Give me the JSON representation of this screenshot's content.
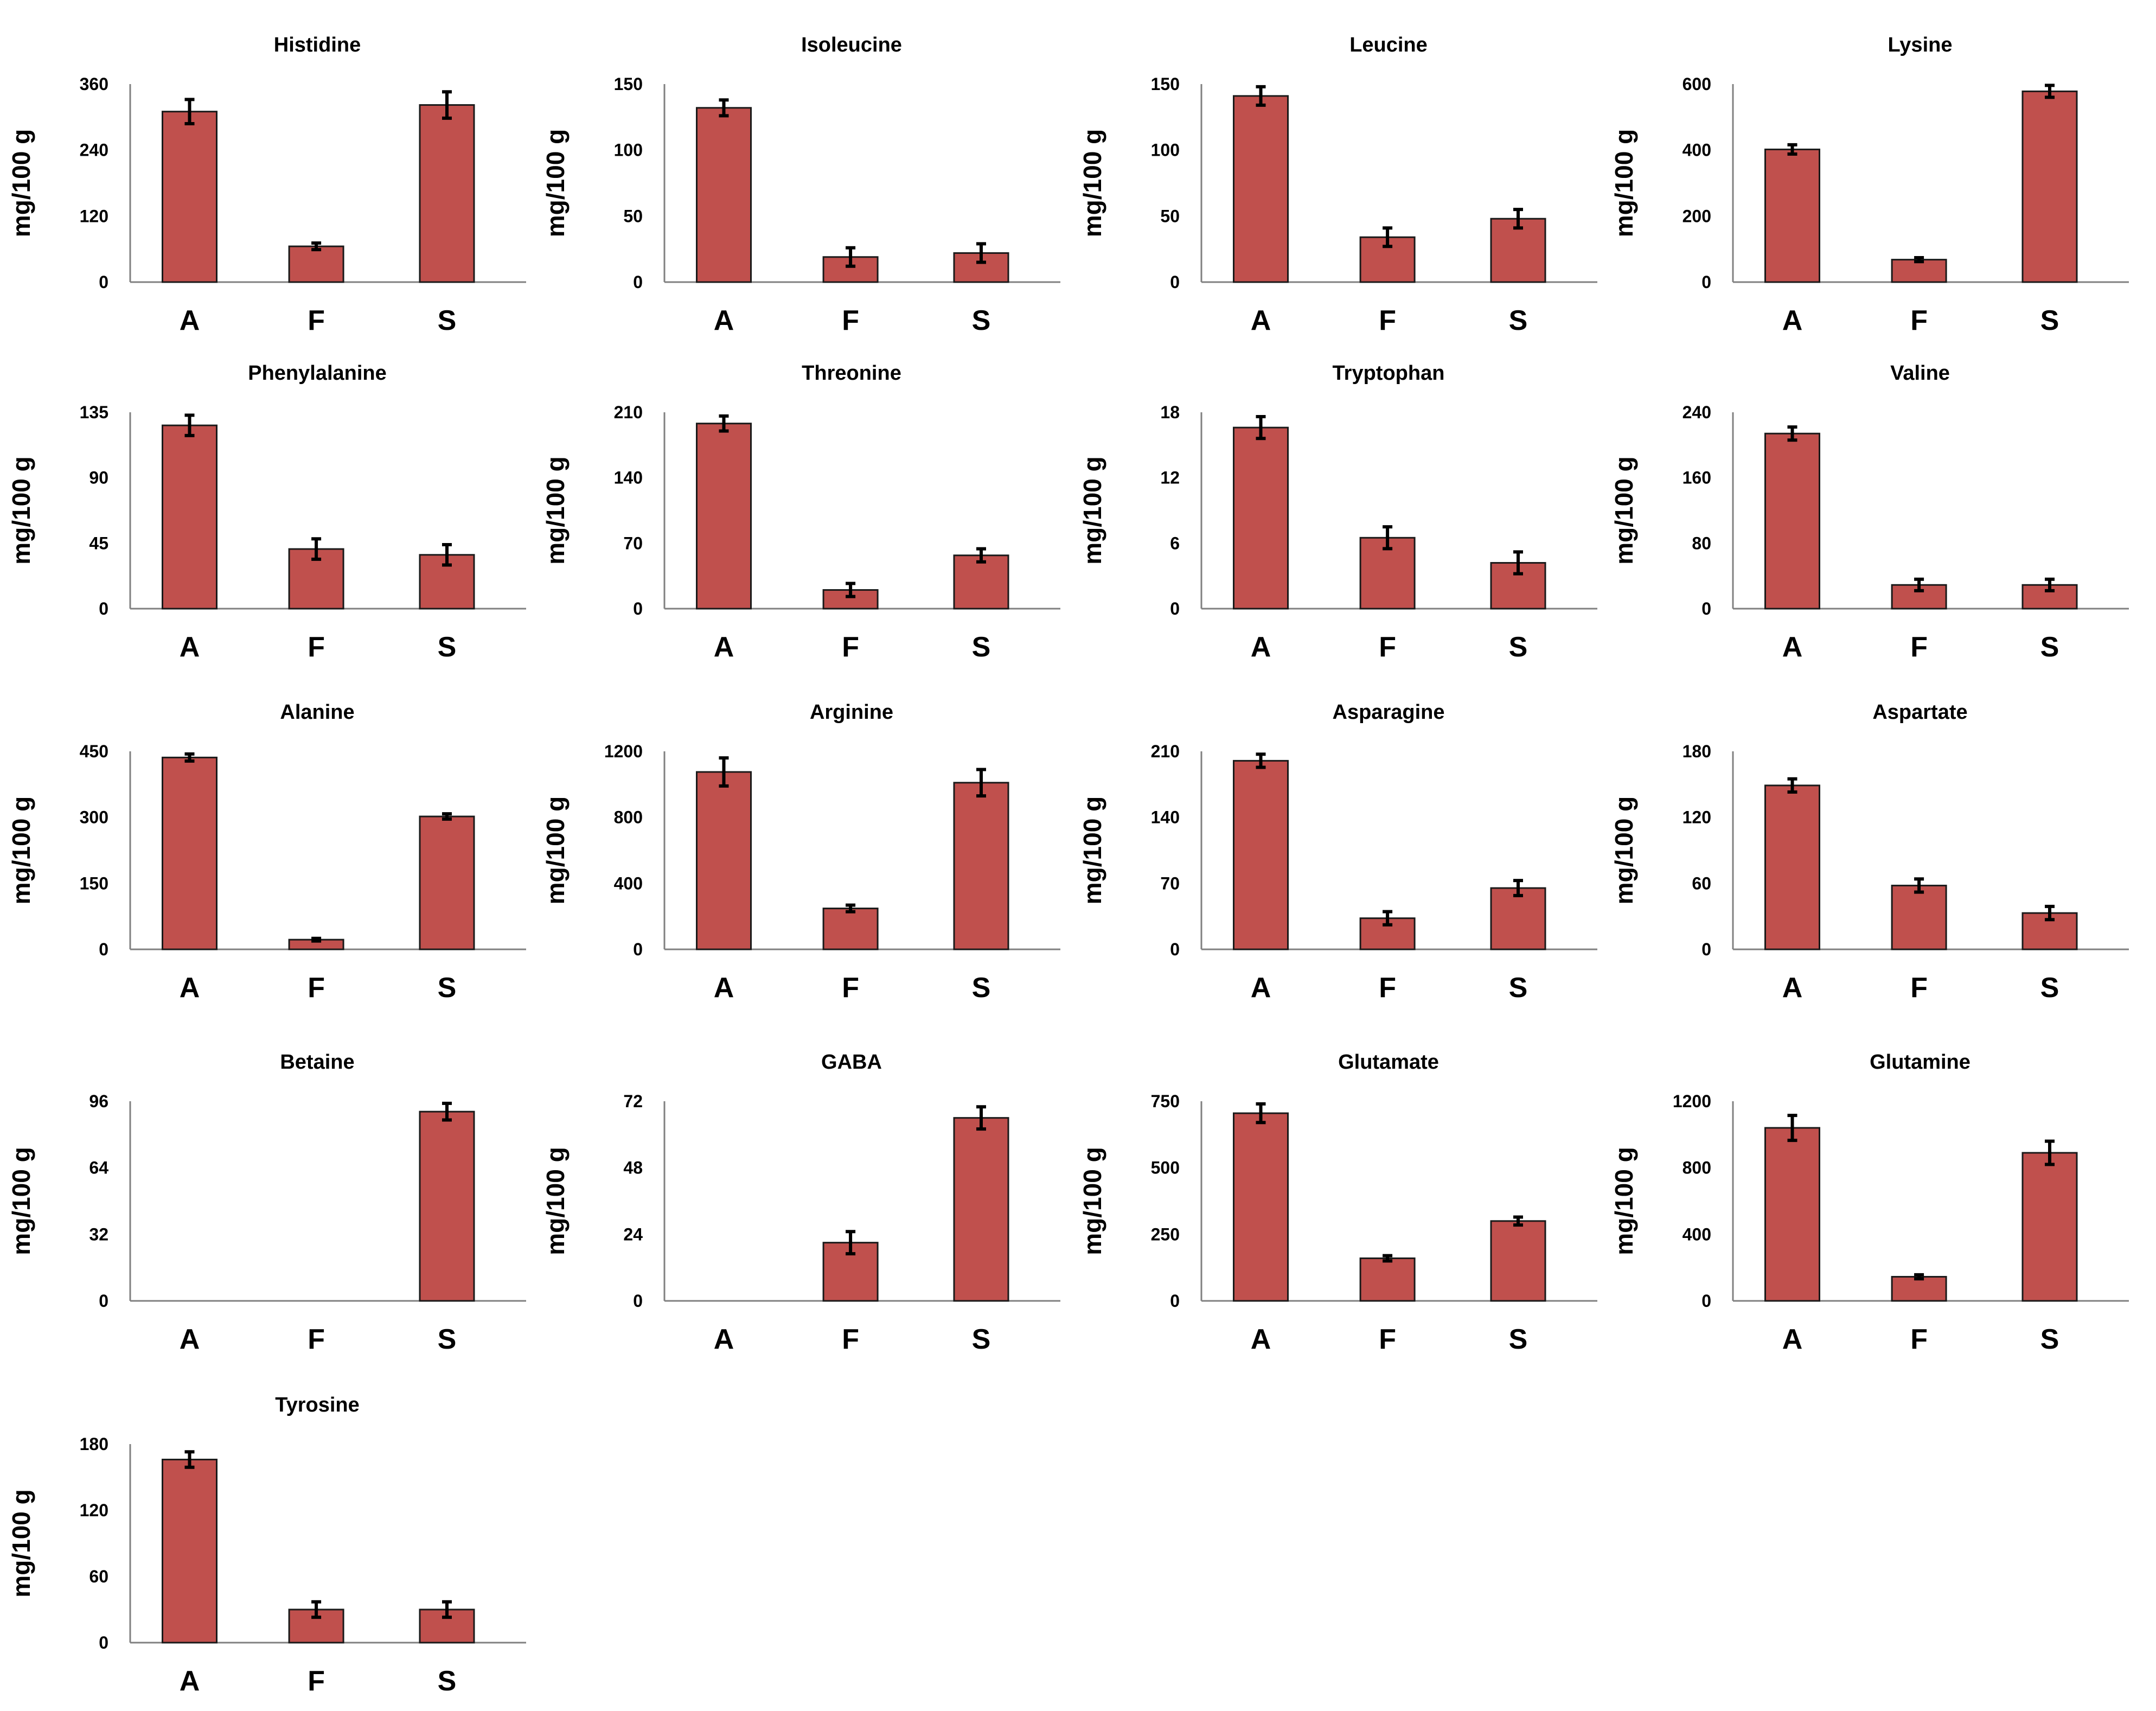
{
  "colors": {
    "bar_fill": "#c0504d",
    "bar_stroke": "#1a1a1a",
    "axis": "#808080",
    "error": "#000000"
  },
  "chart_data": [
    {
      "type": "bar",
      "title": "Histidine",
      "ylabel": "mg/100 g",
      "categories": [
        "A",
        "F",
        "S"
      ],
      "values": [
        310,
        65,
        322
      ],
      "errors": [
        22,
        6,
        24
      ],
      "yticks": [
        "0",
        "120",
        "240",
        "360"
      ],
      "ylim": [
        0,
        360
      ]
    },
    {
      "type": "bar",
      "title": "Isoleucine",
      "ylabel": "mg/100 g",
      "categories": [
        "A",
        "F",
        "S"
      ],
      "values": [
        132,
        19,
        22
      ],
      "errors": [
        6,
        7,
        7
      ],
      "yticks": [
        "0",
        "50",
        "100",
        "150"
      ],
      "ylim": [
        0,
        150
      ]
    },
    {
      "type": "bar",
      "title": "Leucine",
      "ylabel": "mg/100 g",
      "categories": [
        "A",
        "F",
        "S"
      ],
      "values": [
        141,
        34,
        48
      ],
      "errors": [
        7,
        7,
        7
      ],
      "yticks": [
        "0",
        "50",
        "100",
        "150"
      ],
      "ylim": [
        0,
        150
      ]
    },
    {
      "type": "bar",
      "title": "Lysine",
      "ylabel": "mg/100 g",
      "categories": [
        "A",
        "F",
        "S"
      ],
      "values": [
        402,
        68,
        578
      ],
      "errors": [
        14,
        6,
        18
      ],
      "yticks": [
        "0",
        "200",
        "400",
        "600"
      ],
      "ylim": [
        0,
        600
      ]
    },
    {
      "type": "bar",
      "title": "Phenylalanine",
      "ylabel": "mg/100 g",
      "categories": [
        "A",
        "F",
        "S"
      ],
      "values": [
        126,
        41,
        37
      ],
      "errors": [
        7,
        7,
        7
      ],
      "yticks": [
        "0",
        "45",
        "90",
        "135"
      ],
      "ylim": [
        0,
        135
      ]
    },
    {
      "type": "bar",
      "title": "Threonine",
      "ylabel": "mg/100 g",
      "categories": [
        "A",
        "F",
        "S"
      ],
      "values": [
        198,
        20,
        57
      ],
      "errors": [
        8,
        7,
        7
      ],
      "yticks": [
        "0",
        "70",
        "140",
        "210"
      ],
      "ylim": [
        0,
        210
      ]
    },
    {
      "type": "bar",
      "title": "Tryptophan",
      "ylabel": "mg/100 g",
      "categories": [
        "A",
        "F",
        "S"
      ],
      "values": [
        16.6,
        6.5,
        4.2
      ],
      "errors": [
        1.0,
        1.0,
        1.0
      ],
      "yticks": [
        "0",
        "6",
        "12",
        "18"
      ],
      "ylim": [
        0,
        18
      ]
    },
    {
      "type": "bar",
      "title": "Valine",
      "ylabel": "mg/100 g",
      "categories": [
        "A",
        "F",
        "S"
      ],
      "values": [
        214,
        29,
        29
      ],
      "errors": [
        8,
        7,
        7
      ],
      "yticks": [
        "0",
        "80",
        "160",
        "240"
      ],
      "ylim": [
        0,
        240
      ]
    },
    {
      "type": "bar",
      "title": "Alanine",
      "ylabel": "mg/100 g",
      "categories": [
        "A",
        "F",
        "S"
      ],
      "values": [
        436,
        22,
        302
      ],
      "errors": [
        8,
        3,
        6
      ],
      "yticks": [
        "0",
        "150",
        "300",
        "450"
      ],
      "ylim": [
        0,
        450
      ]
    },
    {
      "type": "bar",
      "title": "Arginine",
      "ylabel": "mg/100 g",
      "categories": [
        "A",
        "F",
        "S"
      ],
      "values": [
        1075,
        248,
        1010
      ],
      "errors": [
        85,
        20,
        80
      ],
      "yticks": [
        "0",
        "400",
        "800",
        "1200"
      ],
      "ylim": [
        0,
        1200
      ]
    },
    {
      "type": "bar",
      "title": "Asparagine",
      "ylabel": "mg/100 g",
      "categories": [
        "A",
        "F",
        "S"
      ],
      "values": [
        200,
        33,
        65
      ],
      "errors": [
        7,
        7,
        8
      ],
      "yticks": [
        "0",
        "70",
        "140",
        "210"
      ],
      "ylim": [
        0,
        210
      ]
    },
    {
      "type": "bar",
      "title": "Aspartate",
      "ylabel": "mg/100 g",
      "categories": [
        "A",
        "F",
        "S"
      ],
      "values": [
        149,
        58,
        33
      ],
      "errors": [
        6,
        6,
        6
      ],
      "yticks": [
        "0",
        "60",
        "120",
        "180"
      ],
      "ylim": [
        0,
        180
      ]
    },
    {
      "type": "bar",
      "title": "Betaine",
      "ylabel": "mg/100 g",
      "categories": [
        "A",
        "F",
        "S"
      ],
      "values": [
        0,
        0,
        91
      ],
      "errors": [
        0,
        0,
        4
      ],
      "yticks": [
        "0",
        "32",
        "64",
        "96"
      ],
      "ylim": [
        0,
        96
      ]
    },
    {
      "type": "bar",
      "title": "GABA",
      "ylabel": "mg/100 g",
      "categories": [
        "A",
        "F",
        "S"
      ],
      "values": [
        0,
        21,
        66
      ],
      "errors": [
        0,
        4,
        4
      ],
      "yticks": [
        "0",
        "24",
        "48",
        "72"
      ],
      "ylim": [
        0,
        72
      ]
    },
    {
      "type": "bar",
      "title": "Glutamate",
      "ylabel": "mg/100 g",
      "categories": [
        "A",
        "F",
        "S"
      ],
      "values": [
        705,
        160,
        300
      ],
      "errors": [
        35,
        10,
        15
      ],
      "yticks": [
        "0",
        "250",
        "500",
        "750"
      ],
      "ylim": [
        0,
        750
      ]
    },
    {
      "type": "bar",
      "title": "Glutamine",
      "ylabel": "mg/100 g",
      "categories": [
        "A",
        "F",
        "S"
      ],
      "values": [
        1040,
        145,
        890
      ],
      "errors": [
        75,
        12,
        70
      ],
      "yticks": [
        "0",
        "400",
        "800",
        "1200"
      ],
      "ylim": [
        0,
        1200
      ]
    },
    {
      "type": "bar",
      "title": "Tyrosine",
      "ylabel": "mg/100 g",
      "categories": [
        "A",
        "F",
        "S"
      ],
      "values": [
        166,
        30,
        30
      ],
      "errors": [
        7,
        7,
        7
      ],
      "yticks": [
        "0",
        "60",
        "120",
        "180"
      ],
      "ylim": [
        0,
        180
      ]
    }
  ]
}
